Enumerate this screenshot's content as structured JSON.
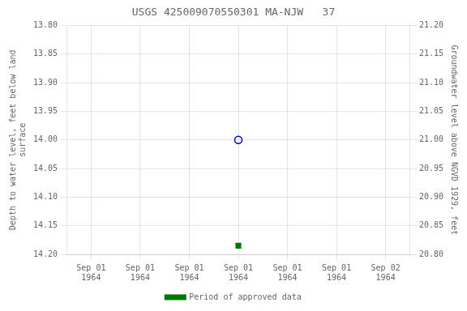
{
  "chart_data": {
    "type": "scatter",
    "title": "USGS 425009070550301 MA-NJW   37",
    "categories": [
      "Sep 01\n1964",
      "Sep 01\n1964",
      "Sep 01\n1964",
      "Sep 01\n1964",
      "Sep 01\n1964",
      "Sep 01\n1964",
      "Sep 02\n1964"
    ],
    "y_label": "Depth to water level, feet below land\nsurface",
    "y2_label": "Groundwater level above NGVD 1929, feet",
    "ylim": [
      14.2,
      13.8
    ],
    "yticks": [
      {
        "value": 13.8,
        "label": "13.80"
      },
      {
        "value": 13.85,
        "label": "13.85"
      },
      {
        "value": 13.9,
        "label": "13.90"
      },
      {
        "value": 13.95,
        "label": "13.95"
      },
      {
        "value": 14.0,
        "label": "14.00"
      },
      {
        "value": 14.05,
        "label": "14.05"
      },
      {
        "value": 14.1,
        "label": "14.10"
      },
      {
        "value": 14.15,
        "label": "14.15"
      },
      {
        "value": 14.2,
        "label": "14.20"
      }
    ],
    "y2lim": [
      20.8,
      21.2
    ],
    "y2ticks": [
      {
        "value": 20.8,
        "label": "20.80"
      },
      {
        "value": 20.85,
        "label": "20.85"
      },
      {
        "value": 20.9,
        "label": "20.90"
      },
      {
        "value": 20.95,
        "label": "20.95"
      },
      {
        "value": 21.0,
        "label": "21.00"
      },
      {
        "value": 21.05,
        "label": "21.05"
      },
      {
        "value": 21.1,
        "label": "21.10"
      },
      {
        "value": 21.15,
        "label": "21.15"
      },
      {
        "value": 21.2,
        "label": "21.20"
      }
    ],
    "grid": true,
    "legend": "bottom",
    "series": [
      {
        "color": "#0000cc",
        "marker": "open_circle",
        "values": [
          null,
          null,
          null,
          14.0,
          null,
          null,
          null
        ]
      },
      {
        "name": "Period of approved data",
        "color": "#007700",
        "marker": "square",
        "values": [
          null,
          null,
          null,
          14.185,
          null,
          null,
          null
        ]
      }
    ]
  }
}
